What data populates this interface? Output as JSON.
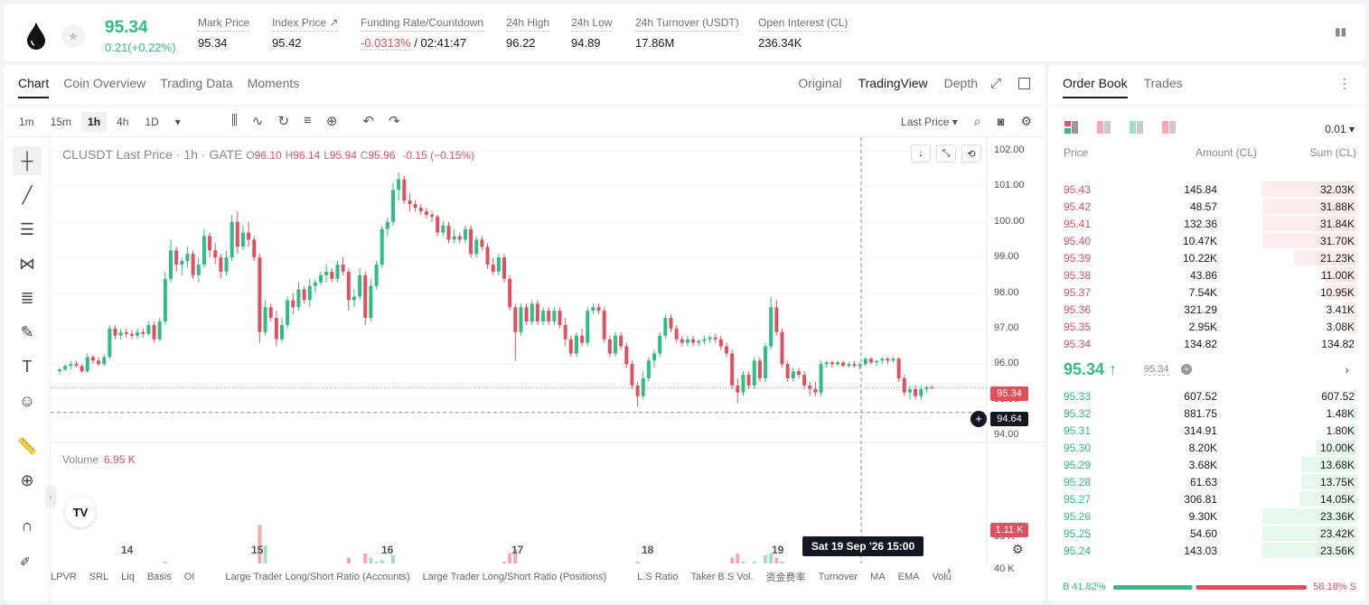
{
  "header": {
    "last_price": "95.34",
    "change": "0.21(+0.22%)",
    "stats": [
      {
        "label": "Mark Price",
        "value": "95.34"
      },
      {
        "label": "Index Price ↗",
        "value": "95.42"
      },
      {
        "label": "Funding Rate/Countdown",
        "value_neg": "-0.0313%",
        "value": " / 02:41:47"
      },
      {
        "label": "24h High",
        "value": "96.22"
      },
      {
        "label": "24h Low",
        "value": "94.89"
      },
      {
        "label": "24h Turnover (USDT)",
        "value": "17.86M"
      },
      {
        "label": "Open Interest (CL)",
        "value": "236.34K"
      }
    ]
  },
  "chart_tabs": [
    "Chart",
    "Coin Overview",
    "Trading Data",
    "Moments"
  ],
  "view_tabs": [
    "Original",
    "TradingView",
    "Depth"
  ],
  "intervals": [
    "1m",
    "15m",
    "1h",
    "4h",
    "1D"
  ],
  "price_source": "Last Price",
  "legend": {
    "title": "CLUSDT Last Price · 1h · GATE",
    "o": "96.10",
    "h": "96.14",
    "l": "95.94",
    "c": "95.96",
    "chg": "-0.15 (−0.15%)"
  },
  "volume_label": "Volume",
  "volume_value": "6.95 K",
  "last_price_tag": "95.34",
  "cursor_price_tag": "94.64",
  "volume_tag": "1.11 K",
  "cursor_date": "Sat 19 Sep '26   15:00",
  "indicators": [
    "LPVR",
    "SRL",
    "Liq",
    "Basis",
    "OI",
    "Large Trader Long/Short Ratio (Accounts)",
    "Large Trader Long/Short Ratio (Positions)",
    "L.S Ratio",
    "Taker B.S Vol.",
    "资金费率",
    "Turnover",
    "MA",
    "EMA",
    "Volu"
  ],
  "chart_data": {
    "type": "candlestick",
    "title": "CLUSDT Last Price · 1h · GATE",
    "x_ticks": [
      "14",
      "15",
      "16",
      "17",
      "18",
      "19"
    ],
    "y_ticks": [
      "102.00",
      "101.00",
      "100.00",
      "99.00",
      "98.00",
      "97.00",
      "96.00",
      "95.00",
      "94.00"
    ],
    "ylim": [
      94.0,
      102.0
    ],
    "volume_ticks": [
      "80 K",
      "40 K"
    ],
    "volume_ylim": [
      0,
      100
    ],
    "candles": [
      [
        95.8,
        95.9,
        95.7,
        95.85,
        20
      ],
      [
        95.85,
        96.0,
        95.8,
        95.95,
        15
      ],
      [
        95.95,
        96.1,
        95.85,
        96.0,
        18
      ],
      [
        96.0,
        96.1,
        95.9,
        95.95,
        22
      ],
      [
        95.95,
        96.0,
        95.75,
        95.8,
        12
      ],
      [
        95.8,
        96.3,
        95.75,
        96.2,
        25
      ],
      [
        96.2,
        96.25,
        96.0,
        96.1,
        16
      ],
      [
        96.1,
        96.2,
        95.95,
        96.0,
        14
      ],
      [
        96.0,
        96.3,
        95.95,
        96.2,
        30
      ],
      [
        96.2,
        97.1,
        96.15,
        97.0,
        40
      ],
      [
        97.0,
        97.1,
        96.7,
        96.8,
        25
      ],
      [
        96.8,
        97.0,
        96.7,
        96.9,
        20
      ],
      [
        96.9,
        97.0,
        96.75,
        96.85,
        18
      ],
      [
        96.85,
        96.95,
        96.7,
        96.8,
        15
      ],
      [
        96.8,
        97.0,
        96.7,
        96.9,
        22
      ],
      [
        96.9,
        97.0,
        96.75,
        96.85,
        14
      ],
      [
        96.85,
        97.2,
        96.8,
        97.1,
        28
      ],
      [
        97.1,
        97.2,
        96.6,
        96.7,
        32
      ],
      [
        96.7,
        97.3,
        96.65,
        97.2,
        35
      ],
      [
        97.2,
        98.6,
        97.1,
        98.4,
        50
      ],
      [
        98.4,
        99.5,
        98.3,
        99.2,
        45
      ],
      [
        99.2,
        99.3,
        98.6,
        98.8,
        30
      ],
      [
        98.8,
        99.0,
        98.5,
        98.9,
        25
      ],
      [
        98.9,
        99.3,
        98.7,
        99.1,
        28
      ],
      [
        99.1,
        99.2,
        98.4,
        98.5,
        30
      ],
      [
        98.5,
        99.0,
        98.3,
        98.8,
        22
      ],
      [
        98.8,
        99.8,
        98.7,
        99.6,
        40
      ],
      [
        99.6,
        99.7,
        99.0,
        99.2,
        35
      ],
      [
        99.2,
        99.4,
        98.8,
        99.0,
        28
      ],
      [
        99.0,
        99.1,
        98.4,
        98.6,
        25
      ],
      [
        98.6,
        99.2,
        98.5,
        99.0,
        32
      ],
      [
        99.0,
        100.2,
        98.9,
        100.0,
        45
      ],
      [
        100.0,
        100.3,
        99.1,
        99.3,
        38
      ],
      [
        99.3,
        99.9,
        99.2,
        99.7,
        30
      ],
      [
        99.7,
        100.0,
        99.3,
        99.5,
        26
      ],
      [
        99.5,
        99.6,
        98.9,
        99.0,
        40
      ],
      [
        99.0,
        99.1,
        96.6,
        96.9,
        95
      ],
      [
        96.9,
        97.8,
        96.8,
        97.6,
        70
      ],
      [
        97.6,
        97.7,
        97.2,
        97.3,
        40
      ],
      [
        97.3,
        97.5,
        96.5,
        96.7,
        38
      ],
      [
        96.7,
        97.3,
        96.6,
        97.1,
        30
      ],
      [
        97.1,
        97.9,
        97.0,
        97.8,
        35
      ],
      [
        97.8,
        98.0,
        97.4,
        97.6,
        30
      ],
      [
        97.6,
        98.3,
        97.5,
        98.1,
        42
      ],
      [
        98.1,
        98.2,
        97.7,
        97.8,
        35
      ],
      [
        97.8,
        98.4,
        97.6,
        98.2,
        38
      ],
      [
        98.2,
        98.4,
        98.0,
        98.3,
        30
      ],
      [
        98.3,
        98.6,
        98.2,
        98.5,
        25
      ],
      [
        98.5,
        98.8,
        98.3,
        98.6,
        30
      ],
      [
        98.6,
        98.7,
        98.3,
        98.4,
        35
      ],
      [
        98.4,
        98.9,
        98.3,
        98.8,
        40
      ],
      [
        98.8,
        99.0,
        98.5,
        98.6,
        42
      ],
      [
        98.6,
        98.7,
        97.5,
        97.8,
        55
      ],
      [
        97.8,
        98.1,
        97.6,
        97.9,
        40
      ],
      [
        97.9,
        98.7,
        97.8,
        98.5,
        45
      ],
      [
        98.5,
        98.6,
        97.1,
        97.3,
        60
      ],
      [
        97.3,
        98.4,
        97.2,
        98.2,
        55
      ],
      [
        98.2,
        98.9,
        98.1,
        98.8,
        50
      ],
      [
        98.8,
        99.9,
        98.7,
        99.8,
        52
      ],
      [
        99.8,
        100.1,
        99.6,
        100.0,
        48
      ],
      [
        100.0,
        101.1,
        99.9,
        100.9,
        58
      ],
      [
        100.9,
        101.4,
        100.6,
        101.2,
        40
      ],
      [
        101.2,
        101.3,
        100.5,
        100.6,
        45
      ],
      [
        100.6,
        100.8,
        100.3,
        100.5,
        35
      ],
      [
        100.5,
        100.6,
        100.3,
        100.4,
        30
      ],
      [
        100.4,
        100.5,
        100.2,
        100.3,
        28
      ],
      [
        100.3,
        100.4,
        100.1,
        100.2,
        25
      ],
      [
        100.2,
        100.3,
        100.0,
        100.15,
        30
      ],
      [
        100.15,
        100.2,
        99.6,
        99.7,
        38
      ],
      [
        99.7,
        100.0,
        99.6,
        99.9,
        30
      ],
      [
        99.9,
        100.0,
        99.4,
        99.5,
        35
      ],
      [
        99.5,
        99.8,
        99.4,
        99.6,
        28
      ],
      [
        99.6,
        99.7,
        99.4,
        99.5,
        25
      ],
      [
        99.5,
        99.9,
        99.4,
        99.8,
        30
      ],
      [
        99.8,
        99.9,
        99.0,
        99.1,
        42
      ],
      [
        99.1,
        99.6,
        99.0,
        99.5,
        35
      ],
      [
        99.5,
        99.6,
        99.2,
        99.3,
        30
      ],
      [
        99.3,
        99.4,
        98.7,
        98.8,
        45
      ],
      [
        98.8,
        99.0,
        98.5,
        98.6,
        40
      ],
      [
        98.6,
        99.1,
        98.5,
        99.0,
        35
      ],
      [
        99.0,
        99.1,
        98.3,
        98.4,
        50
      ],
      [
        98.4,
        98.5,
        97.5,
        97.6,
        60
      ],
      [
        97.6,
        97.7,
        96.1,
        96.9,
        65
      ],
      [
        96.9,
        97.7,
        96.8,
        97.6,
        45
      ],
      [
        97.6,
        97.7,
        97.1,
        97.2,
        40
      ],
      [
        97.2,
        97.8,
        97.1,
        97.7,
        38
      ],
      [
        97.7,
        97.8,
        97.1,
        97.2,
        35
      ],
      [
        97.2,
        97.6,
        97.1,
        97.5,
        30
      ],
      [
        97.5,
        97.6,
        97.1,
        97.2,
        28
      ],
      [
        97.2,
        97.6,
        97.1,
        97.5,
        25
      ],
      [
        97.5,
        97.6,
        97.0,
        97.1,
        30
      ],
      [
        97.1,
        97.3,
        96.5,
        96.7,
        35
      ],
      [
        96.7,
        96.8,
        96.2,
        96.3,
        40
      ],
      [
        96.3,
        96.9,
        96.2,
        96.8,
        30
      ],
      [
        96.8,
        97.0,
        96.5,
        96.6,
        28
      ],
      [
        96.6,
        97.6,
        96.5,
        97.5,
        35
      ],
      [
        97.5,
        97.7,
        97.4,
        97.6,
        25
      ],
      [
        97.6,
        97.7,
        97.4,
        97.5,
        22
      ],
      [
        97.5,
        97.6,
        96.6,
        96.7,
        38
      ],
      [
        96.7,
        96.8,
        96.2,
        96.3,
        40
      ],
      [
        96.3,
        96.9,
        96.2,
        96.8,
        30
      ],
      [
        96.8,
        96.9,
        96.4,
        96.5,
        26
      ],
      [
        96.5,
        96.6,
        95.9,
        96.0,
        35
      ],
      [
        96.0,
        96.1,
        95.3,
        95.4,
        42
      ],
      [
        95.4,
        95.5,
        94.8,
        95.1,
        50
      ],
      [
        95.1,
        95.8,
        95.0,
        95.6,
        40
      ],
      [
        95.6,
        96.2,
        95.5,
        96.1,
        35
      ],
      [
        96.1,
        96.4,
        95.9,
        96.3,
        30
      ],
      [
        96.3,
        96.9,
        96.2,
        96.8,
        32
      ],
      [
        96.8,
        97.4,
        96.7,
        97.3,
        35
      ],
      [
        97.3,
        97.4,
        96.9,
        97.0,
        30
      ],
      [
        97.0,
        97.1,
        96.6,
        96.7,
        28
      ],
      [
        96.7,
        96.8,
        96.5,
        96.6,
        25
      ],
      [
        96.6,
        96.8,
        96.5,
        96.7,
        22
      ],
      [
        96.7,
        96.8,
        96.5,
        96.6,
        20
      ],
      [
        96.6,
        96.7,
        96.5,
        96.65,
        22
      ],
      [
        96.65,
        96.8,
        96.55,
        96.7,
        25
      ],
      [
        96.7,
        96.8,
        96.6,
        96.75,
        20
      ],
      [
        96.75,
        96.85,
        96.6,
        96.7,
        22
      ],
      [
        96.7,
        96.8,
        96.4,
        96.5,
        28
      ],
      [
        96.5,
        96.6,
        96.2,
        96.3,
        30
      ],
      [
        96.3,
        96.4,
        95.3,
        95.4,
        55
      ],
      [
        95.4,
        95.6,
        94.9,
        95.2,
        60
      ],
      [
        95.2,
        95.8,
        95.1,
        95.7,
        50
      ],
      [
        95.7,
        95.8,
        95.3,
        95.4,
        45
      ],
      [
        95.4,
        96.2,
        95.3,
        96.1,
        50
      ],
      [
        96.1,
        96.2,
        95.5,
        95.6,
        45
      ],
      [
        95.6,
        96.6,
        95.5,
        96.5,
        58
      ],
      [
        96.5,
        97.9,
        96.4,
        97.6,
        60
      ],
      [
        97.6,
        97.8,
        96.8,
        96.9,
        55
      ],
      [
        96.9,
        97.0,
        95.9,
        96.0,
        50
      ],
      [
        96.0,
        96.1,
        95.5,
        95.6,
        40
      ],
      [
        95.6,
        95.9,
        95.5,
        95.8,
        30
      ],
      [
        95.8,
        95.9,
        95.6,
        95.7,
        28
      ],
      [
        95.7,
        95.8,
        95.3,
        95.4,
        30
      ],
      [
        95.4,
        95.5,
        95.1,
        95.3,
        26
      ],
      [
        95.3,
        95.5,
        95.1,
        95.2,
        22
      ],
      [
        95.2,
        96.1,
        95.1,
        96.0,
        30
      ],
      [
        96.0,
        96.1,
        95.9,
        96.05,
        15
      ],
      [
        96.05,
        96.1,
        95.9,
        96.0,
        12
      ],
      [
        96.0,
        96.1,
        95.95,
        96.05,
        10
      ],
      [
        96.05,
        96.1,
        95.9,
        95.95,
        8
      ],
      [
        95.95,
        96.05,
        95.9,
        96.0,
        8
      ],
      [
        96.0,
        96.1,
        95.9,
        95.95,
        9
      ],
      [
        95.95,
        96.05,
        95.85,
        96.0,
        8
      ],
      [
        96.0,
        96.2,
        95.95,
        96.15,
        10
      ],
      [
        96.15,
        96.2,
        96.0,
        96.05,
        8
      ],
      [
        96.05,
        96.1,
        95.95,
        96.1,
        7
      ],
      [
        96.1,
        96.2,
        96.0,
        96.15,
        8
      ],
      [
        96.15,
        96.2,
        96.0,
        96.1,
        7
      ],
      [
        96.1,
        96.2,
        96.05,
        96.15,
        6
      ],
      [
        96.15,
        96.2,
        95.5,
        95.6,
        20
      ],
      [
        95.6,
        95.7,
        95.1,
        95.2,
        25
      ],
      [
        95.2,
        95.4,
        95.0,
        95.3,
        18
      ],
      [
        95.3,
        95.4,
        95.0,
        95.1,
        14
      ],
      [
        95.1,
        95.4,
        95.0,
        95.3,
        10
      ],
      [
        95.3,
        95.4,
        95.2,
        95.35,
        6
      ],
      [
        95.35,
        95.4,
        95.3,
        95.34,
        4
      ]
    ]
  },
  "orderbook": {
    "tabs": [
      "Order Book",
      "Trades"
    ],
    "tick": "0.01",
    "headers": {
      "price": "Price",
      "amount": "Amount (CL)",
      "sum": "Sum (CL)"
    },
    "asks": [
      {
        "price": "95.43",
        "amount": "145.84",
        "sum": "32.03K",
        "depth": 1.0
      },
      {
        "price": "95.42",
        "amount": "48.57",
        "sum": "31.88K",
        "depth": 0.995
      },
      {
        "price": "95.41",
        "amount": "132.36",
        "sum": "31.84K",
        "depth": 0.994
      },
      {
        "price": "95.40",
        "amount": "10.47K",
        "sum": "31.70K",
        "depth": 0.99
      },
      {
        "price": "95.39",
        "amount": "10.22K",
        "sum": "21.23K",
        "depth": 0.66
      },
      {
        "price": "95.38",
        "amount": "43.86",
        "sum": "11.00K",
        "depth": 0.34
      },
      {
        "price": "95.37",
        "amount": "7.54K",
        "sum": "10.95K",
        "depth": 0.34
      },
      {
        "price": "95.36",
        "amount": "321.29",
        "sum": "3.41K",
        "depth": 0.11
      },
      {
        "price": "95.35",
        "amount": "2.95K",
        "sum": "3.08K",
        "depth": 0.1
      },
      {
        "price": "95.34",
        "amount": "134.82",
        "sum": "134.82",
        "depth": 0.004
      }
    ],
    "mid_price": "95.34 ↑",
    "mid_mark": "95.34",
    "bids": [
      {
        "price": "95.33",
        "amount": "607.52",
        "sum": "607.52",
        "depth": 0.026
      },
      {
        "price": "95.32",
        "amount": "881.75",
        "sum": "1.48K",
        "depth": 0.063
      },
      {
        "price": "95.31",
        "amount": "314.91",
        "sum": "1.80K",
        "depth": 0.076
      },
      {
        "price": "95.30",
        "amount": "8.20K",
        "sum": "10.00K",
        "depth": 0.42
      },
      {
        "price": "95.29",
        "amount": "3.68K",
        "sum": "13.68K",
        "depth": 0.58
      },
      {
        "price": "95.28",
        "amount": "61.63",
        "sum": "13.75K",
        "depth": 0.58
      },
      {
        "price": "95.27",
        "amount": "306.81",
        "sum": "14.05K",
        "depth": 0.6
      },
      {
        "price": "95.26",
        "amount": "9.30K",
        "sum": "23.36K",
        "depth": 0.99
      },
      {
        "price": "95.25",
        "amount": "54.60",
        "sum": "23.42K",
        "depth": 0.994
      },
      {
        "price": "95.24",
        "amount": "143.03",
        "sum": "23.56K",
        "depth": 1.0
      }
    ],
    "buy_ratio": "B 41.82%",
    "sell_ratio": "58.18% S",
    "buy_fraction": 0.4182
  },
  "colors": {
    "up": "#2ebd85",
    "down": "#e0515f",
    "up_vol": "#a3dfc5",
    "down_vol": "#f2a9b0"
  }
}
